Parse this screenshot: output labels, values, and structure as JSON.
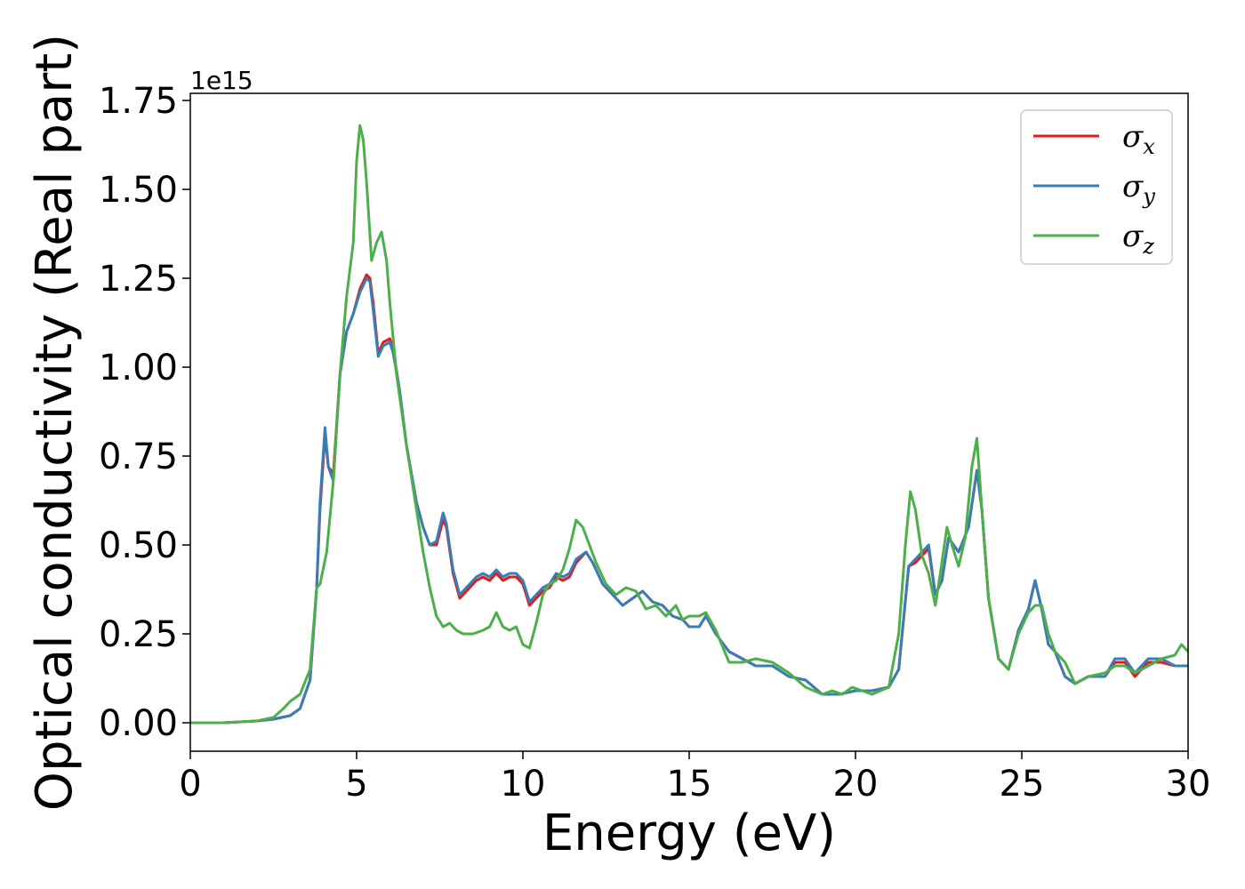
{
  "chart_data": {
    "type": "line",
    "title": "",
    "xlabel": "Energy (eV)",
    "ylabel": "Optical conductivity (Real part)",
    "y_offset_text": "1e15",
    "y_scale": 1000000000000000.0,
    "xlim": [
      0,
      30
    ],
    "ylim": [
      -0.08,
      1.77
    ],
    "x_ticks": [
      0,
      5,
      10,
      15,
      20,
      25,
      30
    ],
    "x_tick_labels": [
      "0",
      "5",
      "10",
      "15",
      "20",
      "25",
      "30"
    ],
    "y_ticks": [
      0,
      0.25,
      0.5,
      0.75,
      1.0,
      1.25,
      1.5,
      1.75
    ],
    "y_tick_labels": [
      "0.00",
      "0.25",
      "0.50",
      "0.75",
      "1.00",
      "1.25",
      "1.50",
      "1.75"
    ],
    "grid": false,
    "legend_position": "top-right",
    "series": [
      {
        "name": "σx",
        "label_base": "σ",
        "label_sub": "x",
        "color": "#e41a1c",
        "x": [
          0,
          1,
          2,
          2.5,
          3.0,
          3.3,
          3.6,
          3.8,
          3.9,
          4.05,
          4.15,
          4.3,
          4.5,
          4.7,
          4.9,
          5.1,
          5.3,
          5.4,
          5.5,
          5.65,
          5.8,
          6.0,
          6.1,
          6.3,
          6.5,
          6.8,
          7.0,
          7.2,
          7.4,
          7.6,
          7.7,
          7.9,
          8.1,
          8.3,
          8.6,
          8.8,
          9.0,
          9.2,
          9.4,
          9.6,
          9.8,
          10.0,
          10.2,
          10.4,
          10.6,
          10.8,
          11.0,
          11.2,
          11.4,
          11.6,
          11.9,
          12.1,
          12.4,
          12.7,
          13.0,
          13.3,
          13.6,
          13.9,
          14.2,
          14.5,
          14.8,
          15.0,
          15.3,
          15.5,
          15.8,
          16.2,
          16.6,
          17.0,
          17.5,
          18.0,
          18.5,
          19.0,
          19.5,
          20.0,
          20.5,
          21.0,
          21.3,
          21.6,
          21.8,
          22.0,
          22.2,
          22.4,
          22.6,
          22.8,
          23.1,
          23.4,
          23.65,
          23.8,
          24.0,
          24.3,
          24.6,
          24.9,
          25.2,
          25.4,
          25.6,
          25.8,
          26.0,
          26.3,
          26.6,
          27.0,
          27.5,
          27.8,
          28.1,
          28.4,
          28.8,
          29.2,
          29.6,
          30.0
        ],
        "y": [
          0.0,
          0.0,
          0.005,
          0.01,
          0.02,
          0.04,
          0.12,
          0.38,
          0.6,
          0.81,
          0.72,
          0.7,
          0.98,
          1.1,
          1.15,
          1.22,
          1.26,
          1.25,
          1.18,
          1.04,
          1.07,
          1.08,
          1.05,
          0.93,
          0.78,
          0.62,
          0.55,
          0.5,
          0.5,
          0.57,
          0.55,
          0.42,
          0.35,
          0.37,
          0.4,
          0.41,
          0.4,
          0.42,
          0.4,
          0.41,
          0.41,
          0.39,
          0.33,
          0.35,
          0.37,
          0.38,
          0.41,
          0.4,
          0.41,
          0.45,
          0.48,
          0.45,
          0.39,
          0.36,
          0.33,
          0.35,
          0.37,
          0.34,
          0.33,
          0.3,
          0.29,
          0.27,
          0.27,
          0.3,
          0.25,
          0.2,
          0.18,
          0.16,
          0.16,
          0.13,
          0.12,
          0.08,
          0.08,
          0.09,
          0.09,
          0.1,
          0.15,
          0.44,
          0.45,
          0.47,
          0.49,
          0.36,
          0.4,
          0.52,
          0.48,
          0.55,
          0.71,
          0.6,
          0.35,
          0.18,
          0.15,
          0.26,
          0.32,
          0.4,
          0.32,
          0.22,
          0.2,
          0.13,
          0.11,
          0.13,
          0.13,
          0.17,
          0.17,
          0.13,
          0.17,
          0.17,
          0.16,
          0.16
        ]
      },
      {
        "name": "σy",
        "label_base": "σ",
        "label_sub": "y",
        "color": "#377eb8",
        "x": [
          0,
          1,
          2,
          2.5,
          3.0,
          3.3,
          3.6,
          3.8,
          3.9,
          4.05,
          4.15,
          4.3,
          4.5,
          4.7,
          4.9,
          5.1,
          5.3,
          5.4,
          5.5,
          5.65,
          5.8,
          6.0,
          6.1,
          6.3,
          6.5,
          6.8,
          7.0,
          7.2,
          7.4,
          7.6,
          7.7,
          7.9,
          8.1,
          8.3,
          8.6,
          8.8,
          9.0,
          9.2,
          9.4,
          9.6,
          9.8,
          10.0,
          10.2,
          10.4,
          10.6,
          10.8,
          11.0,
          11.2,
          11.4,
          11.6,
          11.9,
          12.1,
          12.4,
          12.7,
          13.0,
          13.3,
          13.6,
          13.9,
          14.2,
          14.5,
          14.8,
          15.0,
          15.3,
          15.5,
          15.8,
          16.2,
          16.6,
          17.0,
          17.5,
          18.0,
          18.5,
          19.0,
          19.5,
          20.0,
          20.5,
          21.0,
          21.3,
          21.6,
          21.8,
          22.0,
          22.2,
          22.4,
          22.6,
          22.8,
          23.1,
          23.4,
          23.65,
          23.8,
          24.0,
          24.3,
          24.6,
          24.9,
          25.2,
          25.4,
          25.6,
          25.8,
          26.0,
          26.3,
          26.6,
          27.0,
          27.5,
          27.8,
          28.1,
          28.4,
          28.8,
          29.2,
          29.6,
          30.0
        ],
        "y": [
          0.0,
          0.0,
          0.005,
          0.01,
          0.02,
          0.04,
          0.12,
          0.38,
          0.62,
          0.83,
          0.72,
          0.68,
          0.98,
          1.1,
          1.15,
          1.21,
          1.25,
          1.24,
          1.16,
          1.03,
          1.06,
          1.07,
          1.04,
          0.93,
          0.78,
          0.62,
          0.55,
          0.5,
          0.51,
          0.59,
          0.56,
          0.43,
          0.36,
          0.38,
          0.41,
          0.42,
          0.41,
          0.43,
          0.41,
          0.42,
          0.42,
          0.4,
          0.34,
          0.36,
          0.38,
          0.39,
          0.42,
          0.41,
          0.42,
          0.46,
          0.48,
          0.45,
          0.39,
          0.36,
          0.33,
          0.35,
          0.37,
          0.34,
          0.33,
          0.3,
          0.29,
          0.27,
          0.27,
          0.3,
          0.25,
          0.2,
          0.18,
          0.16,
          0.16,
          0.13,
          0.12,
          0.08,
          0.08,
          0.09,
          0.09,
          0.1,
          0.15,
          0.44,
          0.46,
          0.48,
          0.5,
          0.36,
          0.4,
          0.52,
          0.48,
          0.55,
          0.71,
          0.6,
          0.35,
          0.18,
          0.15,
          0.26,
          0.32,
          0.4,
          0.32,
          0.22,
          0.2,
          0.13,
          0.11,
          0.13,
          0.13,
          0.18,
          0.18,
          0.14,
          0.18,
          0.18,
          0.16,
          0.16
        ]
      },
      {
        "name": "σz",
        "label_base": "σ",
        "label_sub": "z",
        "color": "#4daf4a",
        "x": [
          0,
          1,
          2,
          2.5,
          2.8,
          3.0,
          3.3,
          3.6,
          3.8,
          3.9,
          4.1,
          4.3,
          4.5,
          4.7,
          4.9,
          5.0,
          5.1,
          5.2,
          5.3,
          5.45,
          5.6,
          5.75,
          5.9,
          6.0,
          6.2,
          6.5,
          6.8,
          7.0,
          7.2,
          7.4,
          7.6,
          7.8,
          8.0,
          8.2,
          8.5,
          8.8,
          9.0,
          9.2,
          9.4,
          9.6,
          9.8,
          10.0,
          10.2,
          10.4,
          10.6,
          10.8,
          11.0,
          11.2,
          11.4,
          11.6,
          11.8,
          12.0,
          12.2,
          12.5,
          12.8,
          13.1,
          13.4,
          13.7,
          14.0,
          14.3,
          14.6,
          14.8,
          15.0,
          15.3,
          15.5,
          15.8,
          16.2,
          16.6,
          17.0,
          17.5,
          18.0,
          18.5,
          19.0,
          19.3,
          19.6,
          19.9,
          20.2,
          20.5,
          21.0,
          21.3,
          21.5,
          21.65,
          21.8,
          22.0,
          22.2,
          22.4,
          22.55,
          22.75,
          22.9,
          23.1,
          23.3,
          23.5,
          23.65,
          23.8,
          24.0,
          24.3,
          24.6,
          24.9,
          25.2,
          25.4,
          25.6,
          25.8,
          26.0,
          26.3,
          26.6,
          27.0,
          27.5,
          27.8,
          28.1,
          28.4,
          28.8,
          29.2,
          29.6,
          29.8,
          30.0
        ],
        "y": [
          0.0,
          0.0,
          0.005,
          0.015,
          0.04,
          0.06,
          0.08,
          0.15,
          0.38,
          0.39,
          0.48,
          0.68,
          0.98,
          1.2,
          1.35,
          1.58,
          1.68,
          1.64,
          1.52,
          1.3,
          1.35,
          1.38,
          1.3,
          1.18,
          0.98,
          0.78,
          0.6,
          0.48,
          0.38,
          0.3,
          0.27,
          0.28,
          0.26,
          0.25,
          0.25,
          0.26,
          0.27,
          0.31,
          0.27,
          0.26,
          0.27,
          0.22,
          0.21,
          0.28,
          0.36,
          0.39,
          0.4,
          0.43,
          0.49,
          0.57,
          0.55,
          0.5,
          0.45,
          0.39,
          0.36,
          0.38,
          0.37,
          0.32,
          0.33,
          0.3,
          0.33,
          0.29,
          0.3,
          0.3,
          0.31,
          0.26,
          0.17,
          0.17,
          0.18,
          0.17,
          0.14,
          0.1,
          0.08,
          0.09,
          0.08,
          0.1,
          0.09,
          0.08,
          0.1,
          0.25,
          0.5,
          0.65,
          0.6,
          0.47,
          0.42,
          0.33,
          0.42,
          0.55,
          0.5,
          0.44,
          0.52,
          0.72,
          0.8,
          0.6,
          0.35,
          0.18,
          0.15,
          0.25,
          0.31,
          0.33,
          0.33,
          0.25,
          0.2,
          0.17,
          0.11,
          0.13,
          0.14,
          0.16,
          0.16,
          0.14,
          0.16,
          0.18,
          0.19,
          0.22,
          0.2
        ]
      }
    ]
  }
}
